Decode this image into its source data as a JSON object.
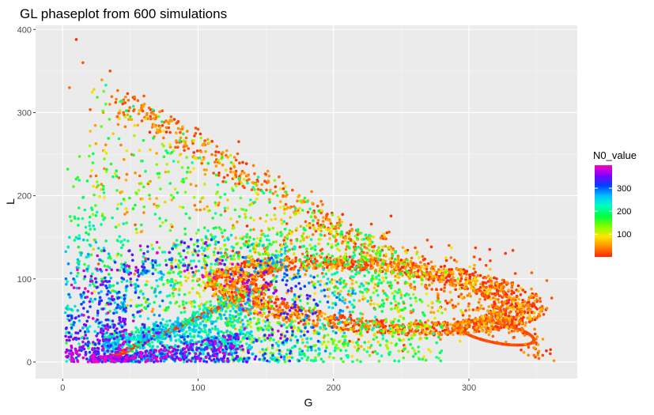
{
  "chart_data": {
    "type": "scatter",
    "title": "GL phaseplot  from 600 simulations",
    "xlabel": "G",
    "ylabel": "L",
    "xlim": [
      -20,
      380
    ],
    "ylim": [
      -20,
      405
    ],
    "xticks": [
      0,
      100,
      200,
      300
    ],
    "yticks": [
      0,
      100,
      200,
      300,
      400
    ],
    "grid": true,
    "legend": {
      "title": "N0_value",
      "placement": "right",
      "range": [
        1,
        400
      ],
      "ticks": [
        100,
        200,
        300
      ],
      "colors": [
        "#ff2400",
        "#ff8c00",
        "#ffe600",
        "#80ff00",
        "#00ff40",
        "#00ffc0",
        "#00c0ff",
        "#0040ff",
        "#8000ff",
        "#ff00c0"
      ]
    },
    "series": [
      {
        "description": "trajectory clouds colored by initial N0 value",
        "points_summary": [
          {
            "G": 10,
            "L": 388,
            "N0": 5
          },
          {
            "G": 15,
            "L": 360,
            "N0": 20
          },
          {
            "G": 35,
            "L": 350,
            "N0": 15
          },
          {
            "G": 5,
            "L": 330,
            "N0": 30
          },
          {
            "G": 60,
            "L": 320,
            "N0": 25
          },
          {
            "G": 80,
            "L": 295,
            "N0": 30
          },
          {
            "G": 30,
            "L": 300,
            "N0": 50
          },
          {
            "G": 100,
            "L": 280,
            "N0": 20
          },
          {
            "G": 130,
            "L": 265,
            "N0": 15
          },
          {
            "G": 20,
            "L": 260,
            "N0": 120
          },
          {
            "G": 10,
            "L": 220,
            "N0": 170
          },
          {
            "G": 5,
            "L": 150,
            "N0": 240
          },
          {
            "G": 8,
            "L": 100,
            "N0": 300
          },
          {
            "G": 5,
            "L": 50,
            "N0": 360
          },
          {
            "G": 5,
            "L": 10,
            "N0": 390
          },
          {
            "G": 40,
            "L": 5,
            "N0": 330
          },
          {
            "G": 60,
            "L": 30,
            "N0": 280
          },
          {
            "G": 90,
            "L": 60,
            "N0": 220
          },
          {
            "G": 150,
            "L": 130,
            "N0": 150
          },
          {
            "G": 180,
            "L": 110,
            "N0": 20
          },
          {
            "G": 230,
            "L": 100,
            "N0": 100
          },
          {
            "G": 260,
            "L": 90,
            "N0": 20
          },
          {
            "G": 300,
            "L": 70,
            "N0": 20
          },
          {
            "G": 340,
            "L": 35,
            "N0": 5
          },
          {
            "G": 360,
            "L": 10,
            "N0": 10
          }
        ]
      }
    ]
  }
}
